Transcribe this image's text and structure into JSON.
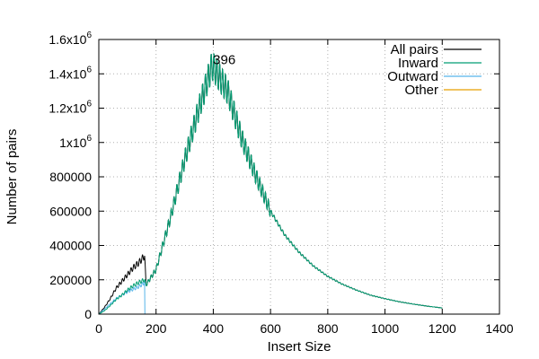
{
  "chart_data": {
    "type": "line",
    "xlabel": "Insert Size",
    "ylabel": "Number of pairs",
    "xlim": [
      0,
      1400
    ],
    "ylim": [
      0,
      1600000
    ],
    "grid": true,
    "legend_position": "top-right",
    "x_ticks": [
      {
        "value": 0,
        "label": "0"
      },
      {
        "value": 200,
        "label": "200"
      },
      {
        "value": 400,
        "label": "400"
      },
      {
        "value": 600,
        "label": "600"
      },
      {
        "value": 800,
        "label": "800"
      },
      {
        "value": 1000,
        "label": "1000"
      },
      {
        "value": 1200,
        "label": "1200"
      },
      {
        "value": 1400,
        "label": "1400"
      }
    ],
    "y_ticks": [
      {
        "value": 0,
        "base": "0",
        "exp": ""
      },
      {
        "value": 200000,
        "base": "200000",
        "exp": ""
      },
      {
        "value": 400000,
        "base": "400000",
        "exp": ""
      },
      {
        "value": 600000,
        "base": "600000",
        "exp": ""
      },
      {
        "value": 800000,
        "base": "800000",
        "exp": ""
      },
      {
        "value": 1000000,
        "base": "1x10",
        "exp": "6"
      },
      {
        "value": 1200000,
        "base": "1.2x10",
        "exp": "6"
      },
      {
        "value": 1400000,
        "base": "1.4x10",
        "exp": "6"
      },
      {
        "value": 1600000,
        "base": "1.6x10",
        "exp": "6"
      }
    ],
    "series": [
      {
        "name": "All pairs",
        "color": "#000000",
        "x": [
          0,
          20,
          40,
          60,
          80,
          100,
          120,
          140,
          160,
          165,
          200,
          250,
          300,
          350,
          396,
          450,
          500,
          550,
          600,
          650,
          700,
          750,
          800,
          850,
          900,
          950,
          1000,
          1050,
          1100,
          1150,
          1200
        ],
        "y": [
          0,
          40000,
          90000,
          150000,
          190000,
          230000,
          270000,
          300000,
          340000,
          170000,
          260000,
          560000,
          900000,
          1200000,
          1450000,
          1300000,
          1020000,
          800000,
          600000,
          460000,
          360000,
          280000,
          220000,
          175000,
          140000,
          110000,
          90000,
          72000,
          58000,
          46000,
          36000
        ]
      },
      {
        "name": "Inward",
        "color": "#009e73",
        "x": [
          0,
          20,
          40,
          60,
          80,
          100,
          120,
          140,
          160,
          165,
          200,
          250,
          300,
          350,
          396,
          450,
          500,
          550,
          600,
          650,
          700,
          750,
          800,
          850,
          900,
          950,
          1000,
          1050,
          1100,
          1150,
          1200
        ],
        "y": [
          0,
          20000,
          50000,
          85000,
          110000,
          140000,
          165000,
          185000,
          200000,
          170000,
          260000,
          560000,
          900000,
          1200000,
          1450000,
          1300000,
          1020000,
          800000,
          600000,
          460000,
          360000,
          280000,
          220000,
          175000,
          140000,
          110000,
          90000,
          72000,
          58000,
          46000,
          36000
        ]
      },
      {
        "name": "Outward",
        "color": "#56b4e9",
        "x": [
          0,
          20,
          40,
          60,
          80,
          100,
          120,
          140,
          158,
          160,
          161
        ],
        "y": [
          0,
          30000,
          60000,
          90000,
          110000,
          130000,
          145000,
          160000,
          180000,
          190000,
          0
        ]
      },
      {
        "name": "Other",
        "color": "#e69f00",
        "x": [
          0,
          1200
        ],
        "y": [
          0,
          0
        ]
      }
    ],
    "oscillation": {
      "period": 10,
      "amplitude_ratio": 0.06
    },
    "annotations": [
      {
        "text": "396",
        "x": 396,
        "y": 1450000
      }
    ]
  }
}
